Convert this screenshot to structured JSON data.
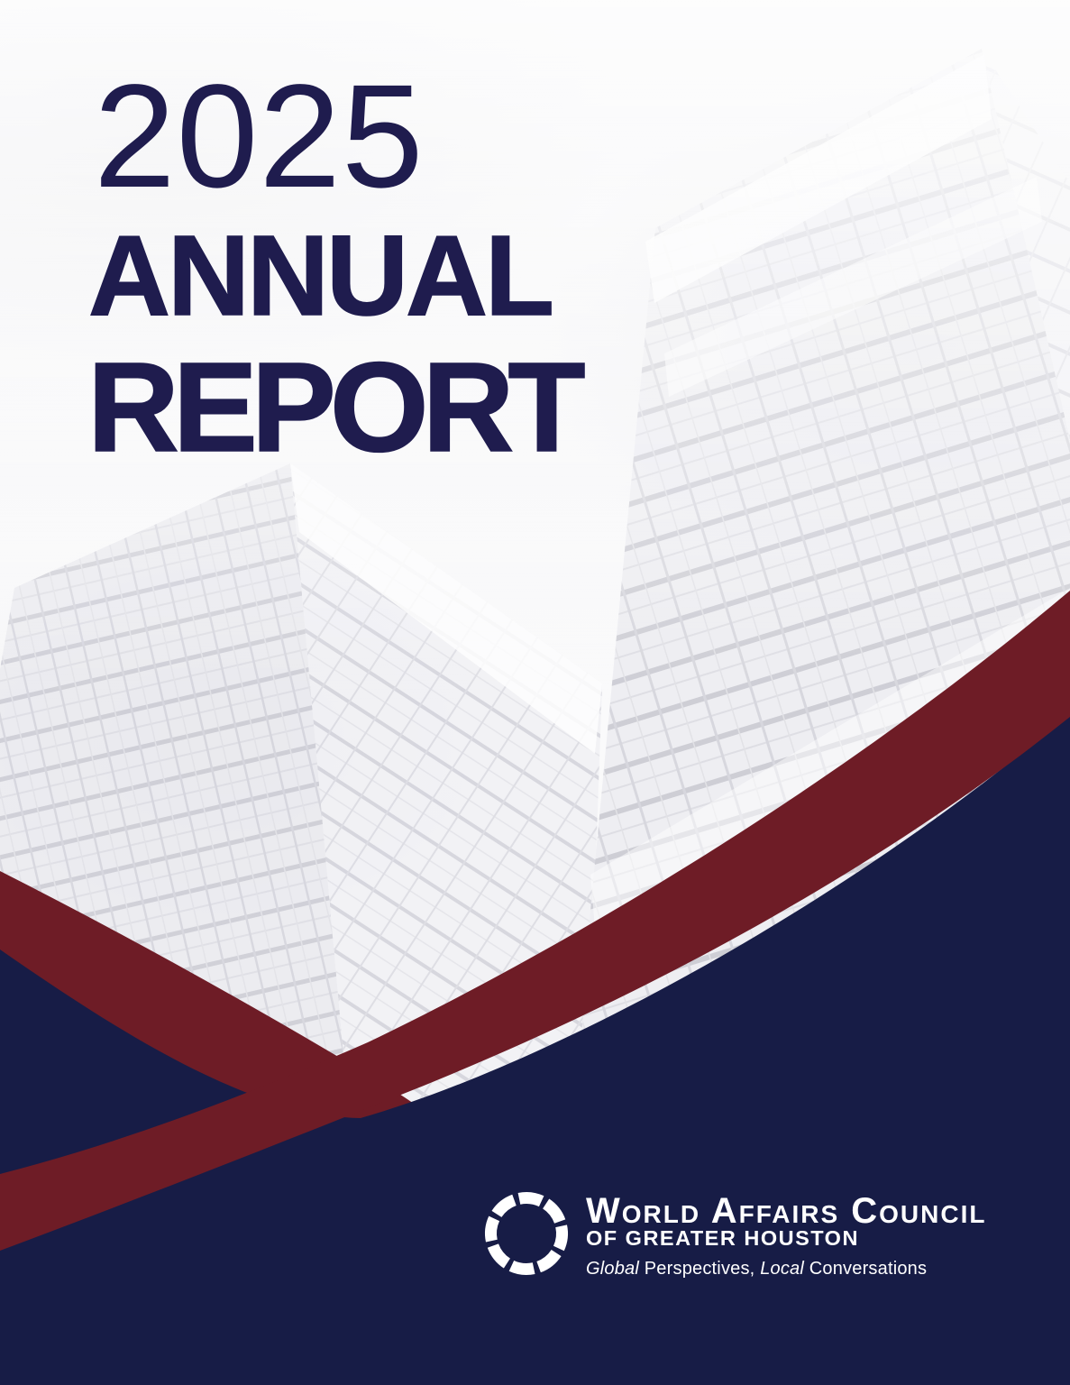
{
  "page": {
    "title_year": "2025",
    "title_line1": "ANNUAL",
    "title_line2": "REPORT"
  },
  "logo": {
    "org_name": "World Affairs Council",
    "org_subname": "OF GREATER HOUSTON",
    "tagline_parts": [
      {
        "text": "Global",
        "italic": true
      },
      {
        "text": " Perspectives, ",
        "italic": false
      },
      {
        "text": "Local",
        "italic": true
      },
      {
        "text": " Conversations",
        "italic": false
      }
    ]
  },
  "colors": {
    "navy": "#171c46",
    "maroon": "#6e1c26",
    "title_navy": "#1f1c4e",
    "logo_white": "#ffffff",
    "building_line": "#c7c7d0",
    "building_glass": "#e9e9ee"
  }
}
